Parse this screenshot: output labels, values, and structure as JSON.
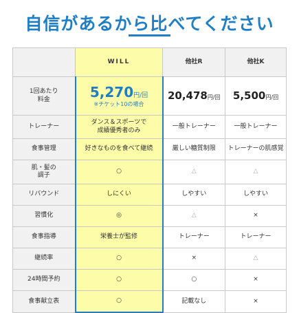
{
  "title": "自信があるから比べてください",
  "columns": [
    "",
    "WILL",
    "他社R",
    "他社K"
  ],
  "price_row": {
    "label": "1回あたり\n料金",
    "will_value": "5,270",
    "will_unit": "円/回",
    "will_note": "※チケット10の場合",
    "r_value": "20,478",
    "r_unit": "円/回",
    "k_value": "5,500",
    "k_unit": "円/回"
  },
  "rows": [
    {
      "label": "トレーナー",
      "will": "ダンス＆スポーツで\n成績優秀者のみ",
      "r": "一般トレーナー",
      "k": "一般トレーナー"
    },
    {
      "label": "食事管理",
      "will": "好きなものを食べて継続",
      "r": "厳しい糖質制限",
      "k": "トレーナーの肌感覚"
    },
    {
      "label": "肌・髪の\n調子",
      "will": "○",
      "r": "△",
      "k": "△"
    },
    {
      "label": "リバウンド",
      "will": "しにくい",
      "r": "しやすい",
      "k": "しやすい"
    },
    {
      "label": "習慣化",
      "will": "◎",
      "r": "△",
      "k": "×"
    },
    {
      "label": "食事指導",
      "will": "栄養士が監修",
      "r": "トレーナー",
      "k": "トレーナー"
    },
    {
      "label": "継続率",
      "will": "○",
      "r": "×",
      "k": "△"
    },
    {
      "label": "24時間予約",
      "will": "○",
      "r": "○",
      "k": "×"
    },
    {
      "label": "食事献立表",
      "will": "○",
      "r": "記載なし",
      "k": "×"
    }
  ]
}
